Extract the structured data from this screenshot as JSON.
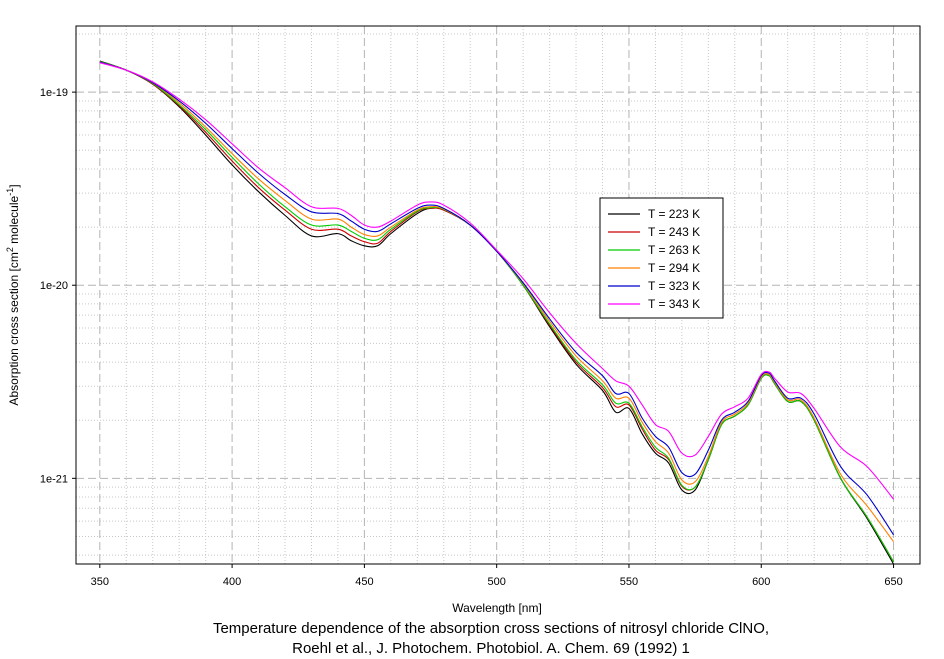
{
  "chart_data": {
    "type": "line",
    "title": "",
    "xlabel": "Wavelength [nm]",
    "ylabel": "Absorption cross section [cm",
    "ylabel_sup1": "2",
    "ylabel_mid": " molecule",
    "ylabel_sup2": "-1",
    "ylabel_end": "]",
    "yscale": "log",
    "xlim": [
      341,
      660
    ],
    "ylim": [
      3.6e-22,
      2.2e-19
    ],
    "xticks": [
      350,
      400,
      450,
      500,
      550,
      600,
      650
    ],
    "xtick_labels": [
      "350",
      "400",
      "450",
      "500",
      "550",
      "600",
      "650"
    ],
    "yticks": [
      1e-19,
      1e-20,
      1e-21
    ],
    "ytick_labels": [
      "1e-19",
      "1e-20",
      "1e-21"
    ],
    "grid": true,
    "legend_position": "center-right",
    "series": [
      {
        "name": "T = 223 K",
        "color": "#000000",
        "x": [
          350,
          360,
          370,
          380,
          390,
          400,
          410,
          420,
          430,
          440,
          445,
          450,
          455,
          460,
          470,
          475,
          480,
          490,
          500,
          510,
          520,
          530,
          540,
          545,
          550,
          555,
          560,
          565,
          570,
          575,
          580,
          585,
          590,
          595,
          600,
          603,
          605,
          610,
          615,
          620,
          630,
          640,
          650
        ],
        "y": [
          1.45e-19,
          1.3e-19,
          1.1e-19,
          8.4e-20,
          6e-20,
          4.2e-20,
          3.05e-20,
          2.3e-20,
          1.8e-20,
          1.85e-20,
          1.7e-20,
          1.6e-20,
          1.6e-20,
          1.85e-20,
          2.35e-20,
          2.5e-20,
          2.45e-20,
          2.05e-20,
          1.5e-20,
          1e-20,
          6.1e-21,
          3.9e-21,
          2.85e-21,
          2.2e-21,
          2.3e-21,
          1.7e-21,
          1.35e-21,
          1.2e-21,
          8.7e-22,
          8.7e-22,
          1.25e-21,
          1.9e-21,
          2.1e-21,
          2.4e-21,
          3.3e-21,
          3.4e-21,
          3.1e-21,
          2.5e-21,
          2.5e-21,
          2e-21,
          1e-21,
          6.2e-22,
          3.6e-22
        ]
      },
      {
        "name": "T = 243 K",
        "color": "#cc0000",
        "x": [
          350,
          360,
          370,
          380,
          390,
          400,
          410,
          420,
          430,
          440,
          445,
          450,
          455,
          460,
          470,
          475,
          480,
          490,
          500,
          510,
          520,
          530,
          540,
          545,
          550,
          555,
          560,
          565,
          570,
          575,
          580,
          585,
          590,
          595,
          600,
          603,
          605,
          610,
          615,
          620,
          630,
          640,
          650
        ],
        "y": [
          1.44e-19,
          1.3e-19,
          1.1e-19,
          8.5e-20,
          6.2e-20,
          4.4e-20,
          3.2e-20,
          2.45e-20,
          1.95e-20,
          1.95e-20,
          1.8e-20,
          1.68e-20,
          1.65e-20,
          1.9e-20,
          2.4e-20,
          2.5e-20,
          2.45e-20,
          2.05e-20,
          1.5e-20,
          1e-20,
          6.2e-21,
          4e-21,
          2.95e-21,
          2.35e-21,
          2.4e-21,
          1.8e-21,
          1.4e-21,
          1.25e-21,
          9.1e-22,
          9e-22,
          1.25e-21,
          1.9e-21,
          2.1e-21,
          2.4e-21,
          3.3e-21,
          3.4e-21,
          3.1e-21,
          2.5e-21,
          2.5e-21,
          2e-21,
          1e-21,
          6.3e-22,
          3.7e-22
        ]
      },
      {
        "name": "T = 263 K",
        "color": "#00cc00",
        "x": [
          350,
          360,
          370,
          380,
          390,
          400,
          410,
          420,
          430,
          440,
          445,
          450,
          455,
          460,
          470,
          475,
          480,
          490,
          500,
          510,
          520,
          530,
          540,
          545,
          550,
          555,
          560,
          565,
          570,
          575,
          580,
          585,
          590,
          595,
          600,
          603,
          605,
          610,
          615,
          620,
          630,
          640,
          650
        ],
        "y": [
          1.44e-19,
          1.3e-19,
          1.11e-19,
          8.6e-20,
          6.4e-20,
          4.6e-20,
          3.35e-20,
          2.55e-20,
          2.05e-20,
          2.05e-20,
          1.9e-20,
          1.75e-20,
          1.72e-20,
          1.95e-20,
          2.42e-20,
          2.52e-20,
          2.47e-20,
          2.05e-20,
          1.5e-20,
          1e-20,
          6.3e-21,
          4.1e-21,
          3.05e-21,
          2.45e-21,
          2.45e-21,
          1.85e-21,
          1.45e-21,
          1.27e-21,
          9.2e-22,
          9e-22,
          1.25e-21,
          1.9e-21,
          2.1e-21,
          2.4e-21,
          3.3e-21,
          3.4e-21,
          3.1e-21,
          2.5e-21,
          2.5e-21,
          2e-21,
          1e-21,
          6.3e-22,
          3.7e-22
        ]
      },
      {
        "name": "T = 294 K",
        "color": "#ff8000",
        "x": [
          350,
          360,
          370,
          380,
          390,
          400,
          410,
          420,
          430,
          440,
          445,
          450,
          455,
          460,
          470,
          475,
          480,
          490,
          500,
          510,
          520,
          530,
          540,
          545,
          550,
          555,
          560,
          565,
          570,
          575,
          580,
          585,
          590,
          595,
          600,
          603,
          605,
          610,
          615,
          620,
          630,
          640,
          650
        ],
        "y": [
          1.43e-19,
          1.3e-19,
          1.12e-19,
          8.8e-20,
          6.6e-20,
          4.8e-20,
          3.55e-20,
          2.75e-20,
          2.2e-20,
          2.2e-20,
          2e-20,
          1.83e-20,
          1.8e-20,
          2e-20,
          2.45e-20,
          2.55e-20,
          2.48e-20,
          2.05e-20,
          1.5e-20,
          1.02e-20,
          6.5e-21,
          4.3e-21,
          3.2e-21,
          2.6e-21,
          2.6e-21,
          1.95e-21,
          1.55e-21,
          1.35e-21,
          9.8e-22,
          9.6e-22,
          1.3e-21,
          1.95e-21,
          2.15e-21,
          2.45e-21,
          3.35e-21,
          3.45e-21,
          3.15e-21,
          2.55e-21,
          2.55e-21,
          2.05e-21,
          1.05e-21,
          7.2e-22,
          4.7e-22
        ]
      },
      {
        "name": "T = 323 K",
        "color": "#0000cc",
        "x": [
          350,
          360,
          370,
          380,
          390,
          400,
          410,
          420,
          430,
          440,
          445,
          450,
          455,
          460,
          470,
          475,
          480,
          490,
          500,
          510,
          520,
          530,
          540,
          545,
          550,
          555,
          560,
          565,
          570,
          575,
          580,
          585,
          590,
          595,
          600,
          603,
          605,
          610,
          615,
          620,
          630,
          640,
          650
        ],
        "y": [
          1.43e-19,
          1.3e-19,
          1.12e-19,
          9e-20,
          6.9e-20,
          5.1e-20,
          3.8e-20,
          2.95e-20,
          2.4e-20,
          2.35e-20,
          2.15e-20,
          1.95e-20,
          1.9e-20,
          2.08e-20,
          2.5e-20,
          2.6e-20,
          2.5e-20,
          2.05e-20,
          1.5e-20,
          1.03e-20,
          6.7e-21,
          4.5e-21,
          3.4e-21,
          2.75e-21,
          2.75e-21,
          2.05e-21,
          1.65e-21,
          1.45e-21,
          1.07e-21,
          1.05e-21,
          1.4e-21,
          2e-21,
          2.2e-21,
          2.5e-21,
          3.4e-21,
          3.5e-21,
          3.2e-21,
          2.6e-21,
          2.6e-21,
          2.15e-21,
          1.15e-21,
          8.2e-22,
          5.1e-22
        ]
      },
      {
        "name": "T = 343 K",
        "color": "#ff00ff",
        "x": [
          350,
          360,
          370,
          380,
          390,
          400,
          410,
          420,
          430,
          440,
          445,
          450,
          455,
          460,
          470,
          475,
          480,
          490,
          500,
          510,
          520,
          530,
          540,
          545,
          550,
          555,
          560,
          565,
          570,
          575,
          580,
          585,
          590,
          595,
          600,
          603,
          605,
          610,
          615,
          620,
          630,
          640,
          650
        ],
        "y": [
          1.42e-19,
          1.3e-19,
          1.13e-19,
          9.2e-20,
          7.2e-20,
          5.4e-20,
          4.05e-20,
          3.2e-20,
          2.55e-20,
          2.5e-20,
          2.3e-20,
          2.05e-20,
          2e-20,
          2.15e-20,
          2.6e-20,
          2.7e-20,
          2.6e-20,
          2.1e-20,
          1.52e-20,
          1.08e-20,
          7.2e-21,
          5e-21,
          3.7e-21,
          3.2e-21,
          3e-21,
          2.4e-21,
          1.9e-21,
          1.75e-21,
          1.35e-21,
          1.32e-21,
          1.65e-21,
          2.15e-21,
          2.35e-21,
          2.6e-21,
          3.45e-21,
          3.55e-21,
          3.3e-21,
          2.8e-21,
          2.75e-21,
          2.3e-21,
          1.45e-21,
          1.15e-21,
          7.8e-22
        ]
      }
    ]
  },
  "caption": {
    "line1": "Temperature dependence of the absorption cross sections of nitrosyl chloride ClNO,",
    "line2": "Roehl et al., J. Photochem. Photobiol. A. Chem. 69 (1992) 1"
  }
}
